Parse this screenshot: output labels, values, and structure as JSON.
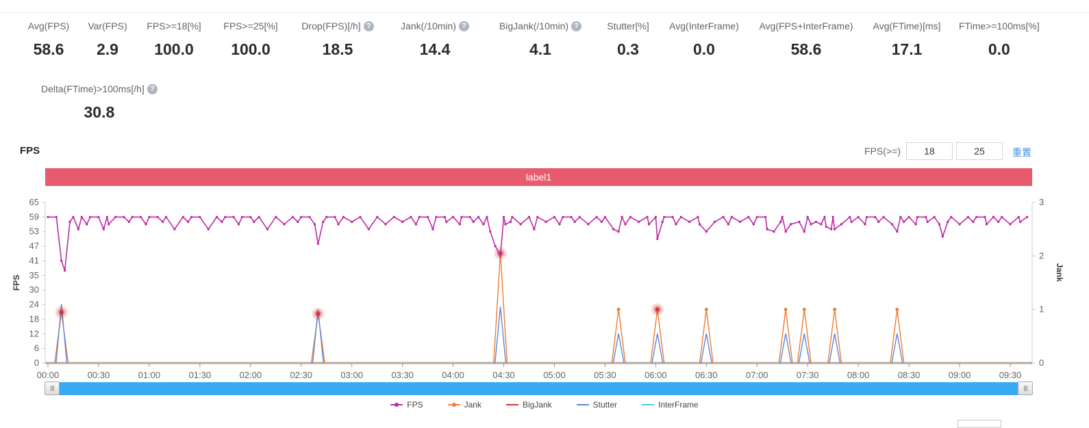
{
  "metrics": {
    "row1": [
      {
        "label": "Avg(FPS)",
        "value": "58.6",
        "help": false
      },
      {
        "label": "Var(FPS)",
        "value": "2.9",
        "help": false
      },
      {
        "label": "FPS>=18[%]",
        "value": "100.0",
        "help": false
      },
      {
        "label": "FPS>=25[%]",
        "value": "100.0",
        "help": false
      },
      {
        "label": "Drop(FPS)[/h]",
        "value": "18.5",
        "help": true
      },
      {
        "label": "Jank(/10min)",
        "value": "14.4",
        "help": true
      },
      {
        "label": "BigJank(/10min)",
        "value": "4.1",
        "help": true
      },
      {
        "label": "Stutter[%]",
        "value": "0.3",
        "help": false
      },
      {
        "label": "Avg(InterFrame)",
        "value": "0.0",
        "help": false
      },
      {
        "label": "Avg(FPS+InterFrame)",
        "value": "58.6",
        "help": false
      },
      {
        "label": "Avg(FTime)[ms]",
        "value": "17.1",
        "help": false
      },
      {
        "label": "FTime>=100ms[%]",
        "value": "0.0",
        "help": false
      }
    ],
    "row2": [
      {
        "label": "Delta(FTime)>100ms[/h]",
        "value": "30.8",
        "help": true
      }
    ]
  },
  "section": {
    "title": "FPS"
  },
  "controls": {
    "fps_threshold_label": "FPS(>=)",
    "input1": "18",
    "input2": "25",
    "reset_label": "重置"
  },
  "chart_data": {
    "type": "line",
    "title": "label1",
    "ylabel_left": "FPS",
    "ylabel_right": "Jank",
    "left_ticks": [
      65,
      59,
      53,
      47,
      41,
      35,
      30,
      24,
      18,
      12,
      6,
      0
    ],
    "right_ticks": [
      3,
      2,
      1,
      0
    ],
    "x_ticks": [
      "00:00",
      "00:30",
      "01:00",
      "01:30",
      "02:00",
      "02:30",
      "03:00",
      "03:30",
      "04:00",
      "04:30",
      "05:00",
      "05:30",
      "06:00",
      "06:30",
      "07:00",
      "07:30",
      "08:00",
      "08:30",
      "09:00",
      "09:30"
    ],
    "x_tick_interval_s": 30,
    "duration_s": 580,
    "sample_interval_s": 5,
    "fps_baseline": 59,
    "fps_dips": [
      [
        8,
        41
      ],
      [
        10,
        37
      ],
      [
        13,
        57
      ],
      [
        18,
        54
      ],
      [
        23,
        56
      ],
      [
        33,
        54
      ],
      [
        36,
        56
      ],
      [
        48,
        57
      ],
      [
        58,
        56
      ],
      [
        68,
        57
      ],
      [
        75,
        54
      ],
      [
        83,
        57
      ],
      [
        95,
        54
      ],
      [
        103,
        57
      ],
      [
        113,
        56
      ],
      [
        122,
        57
      ],
      [
        130,
        54
      ],
      [
        140,
        56
      ],
      [
        148,
        57
      ],
      [
        158,
        56
      ],
      [
        160,
        48
      ],
      [
        163,
        57
      ],
      [
        172,
        56
      ],
      [
        180,
        57
      ],
      [
        190,
        54
      ],
      [
        200,
        56
      ],
      [
        210,
        57
      ],
      [
        218,
        56
      ],
      [
        228,
        54
      ],
      [
        236,
        57
      ],
      [
        244,
        56
      ],
      [
        252,
        57
      ],
      [
        258,
        56
      ],
      [
        262,
        53
      ],
      [
        265,
        47
      ],
      [
        268,
        43
      ],
      [
        271,
        56
      ],
      [
        274,
        57
      ],
      [
        280,
        56
      ],
      [
        288,
        54
      ],
      [
        295,
        57
      ],
      [
        303,
        56
      ],
      [
        312,
        57
      ],
      [
        320,
        56
      ],
      [
        328,
        57
      ],
      [
        335,
        54
      ],
      [
        338,
        53
      ],
      [
        342,
        56
      ],
      [
        350,
        57
      ],
      [
        356,
        56
      ],
      [
        361,
        50
      ],
      [
        364,
        57
      ],
      [
        372,
        56
      ],
      [
        380,
        57
      ],
      [
        386,
        56
      ],
      [
        390,
        53
      ],
      [
        395,
        57
      ],
      [
        403,
        56
      ],
      [
        410,
        57
      ],
      [
        418,
        56
      ],
      [
        426,
        54
      ],
      [
        430,
        53
      ],
      [
        434,
        57
      ],
      [
        437,
        53
      ],
      [
        440,
        56
      ],
      [
        445,
        57
      ],
      [
        448,
        53
      ],
      [
        452,
        56
      ],
      [
        455,
        57
      ],
      [
        458,
        56
      ],
      [
        461,
        55
      ],
      [
        464,
        54
      ],
      [
        466,
        54
      ],
      [
        470,
        56
      ],
      [
        476,
        57
      ],
      [
        484,
        56
      ],
      [
        492,
        57
      ],
      [
        500,
        56
      ],
      [
        503,
        53
      ],
      [
        507,
        57
      ],
      [
        514,
        56
      ],
      [
        521,
        57
      ],
      [
        528,
        56
      ],
      [
        530,
        51
      ],
      [
        533,
        57
      ],
      [
        540,
        56
      ],
      [
        548,
        57
      ],
      [
        556,
        56
      ],
      [
        563,
        57
      ],
      [
        570,
        56
      ],
      [
        576,
        57
      ]
    ],
    "jank_events": [
      {
        "t": 8,
        "jank": 0.95,
        "stutter": 1.1,
        "big": true
      },
      {
        "t": 160,
        "jank": 0.92,
        "stutter": 1.0,
        "big": true
      },
      {
        "t": 268,
        "jank": 2.05,
        "stutter": 1.05,
        "big": true
      },
      {
        "t": 338,
        "jank": 1.0,
        "stutter": 0.55,
        "big": false
      },
      {
        "t": 361,
        "jank": 1.0,
        "stutter": 0.55,
        "big": true
      },
      {
        "t": 390,
        "jank": 1.0,
        "stutter": 0.55,
        "big": false
      },
      {
        "t": 437,
        "jank": 1.0,
        "stutter": 0.55,
        "big": false
      },
      {
        "t": 448,
        "jank": 1.0,
        "stutter": 0.55,
        "big": false
      },
      {
        "t": 466,
        "jank": 1.0,
        "stutter": 0.55,
        "big": false
      },
      {
        "t": 503,
        "jank": 1.0,
        "stutter": 0.55,
        "big": false
      }
    ],
    "legend": [
      {
        "label": "FPS",
        "color": "#bd2ba3",
        "marker": true
      },
      {
        "label": "Jank",
        "color": "#ee7c2f",
        "marker": true
      },
      {
        "label": "BigJank",
        "color": "#d03434",
        "marker": false
      },
      {
        "label": "Stutter",
        "color": "#5b87d9",
        "marker": false
      },
      {
        "label": "InterFrame",
        "color": "#41c7e3",
        "marker": false
      }
    ],
    "yaxis_left_range": [
      0,
      65
    ],
    "yaxis_right_range": [
      0,
      3
    ],
    "grid": false,
    "legend_position": "bottom"
  },
  "colors": {
    "fps_line": "#bd2ba3",
    "jank_line": "#ee7c2f",
    "bigjank": "#d03434",
    "stutter_line": "#5b87d9",
    "interframe_line": "#41c7e3",
    "label_bar": "#e85a6e",
    "axis_line": "#b7aa9c",
    "axis_gray": "#cccccc",
    "tick_text": "#5f6368",
    "scrollbar": "#39a9f4",
    "link": "#4a8fe2"
  }
}
